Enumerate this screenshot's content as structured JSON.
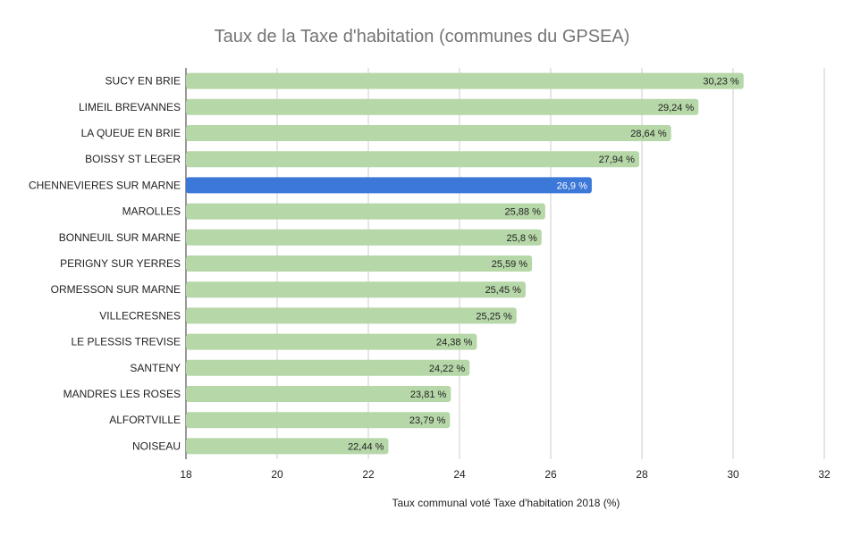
{
  "chart_data": {
    "type": "bar",
    "orientation": "horizontal",
    "title": "Taux de la Taxe d'habitation (communes du GPSEA)",
    "xlabel": "Taux communal voté Taxe d'habitation 2018 (%)",
    "ylabel": "",
    "xlim": [
      18,
      32
    ],
    "xticks": [
      18,
      20,
      22,
      24,
      26,
      28,
      30,
      32
    ],
    "grid": true,
    "legend": "none",
    "bar_color": "#b6d7a8",
    "highlight_color": "#3c78d8",
    "categories": [
      "SUCY EN BRIE",
      "LIMEIL BREVANNES",
      "LA QUEUE EN BRIE",
      "BOISSY ST LEGER",
      "CHENNEVIERES SUR MARNE",
      "MAROLLES",
      "BONNEUIL SUR MARNE",
      "PERIGNY SUR YERRES",
      "ORMESSON SUR MARNE",
      "VILLECRESNES",
      "LE PLESSIS TREVISE",
      "SANTENY",
      "MANDRES LES ROSES",
      "ALFORTVILLE",
      "NOISEAU"
    ],
    "values": [
      30.23,
      29.24,
      28.64,
      27.94,
      26.9,
      25.88,
      25.8,
      25.59,
      25.45,
      25.25,
      24.38,
      24.22,
      23.81,
      23.79,
      22.44
    ],
    "value_labels": [
      "30,23 %",
      "29,24 %",
      "28,64 %",
      "27,94 %",
      "26,9 %",
      "25,88 %",
      "25,8 %",
      "25,59 %",
      "25,45 %",
      "25,25 %",
      "24,38 %",
      "24,22 %",
      "23,81 %",
      "23,79 %",
      "22,44 %"
    ],
    "highlighted": "CHENNEVIERES SUR MARNE"
  }
}
